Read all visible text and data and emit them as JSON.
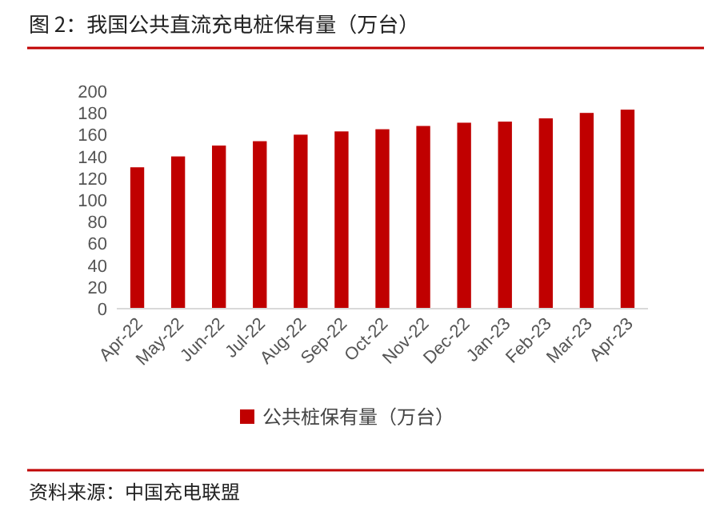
{
  "chart_data": {
    "type": "bar",
    "title": "图 2：我国公共直流充电桩保有量（万台）",
    "categories": [
      "Apr-22",
      "May-22",
      "Jun-22",
      "Jul-22",
      "Aug-22",
      "Sep-22",
      "Oct-22",
      "Nov-22",
      "Dec-22",
      "Jan-23",
      "Feb-23",
      "Mar-23",
      "Apr-23"
    ],
    "series": [
      {
        "name": "公共桩保有量（万台）",
        "color": "#c00000",
        "values": [
          130,
          140,
          150,
          154,
          160,
          163,
          165,
          168,
          171,
          172,
          175,
          180,
          183
        ]
      }
    ],
    "ylim": [
      0,
      200
    ],
    "yticks": [
      0,
      20,
      40,
      60,
      80,
      100,
      120,
      140,
      160,
      180,
      200
    ],
    "legend": "bottom",
    "grid": false,
    "annotations": [
      "资料来源：中国充电联盟"
    ]
  }
}
